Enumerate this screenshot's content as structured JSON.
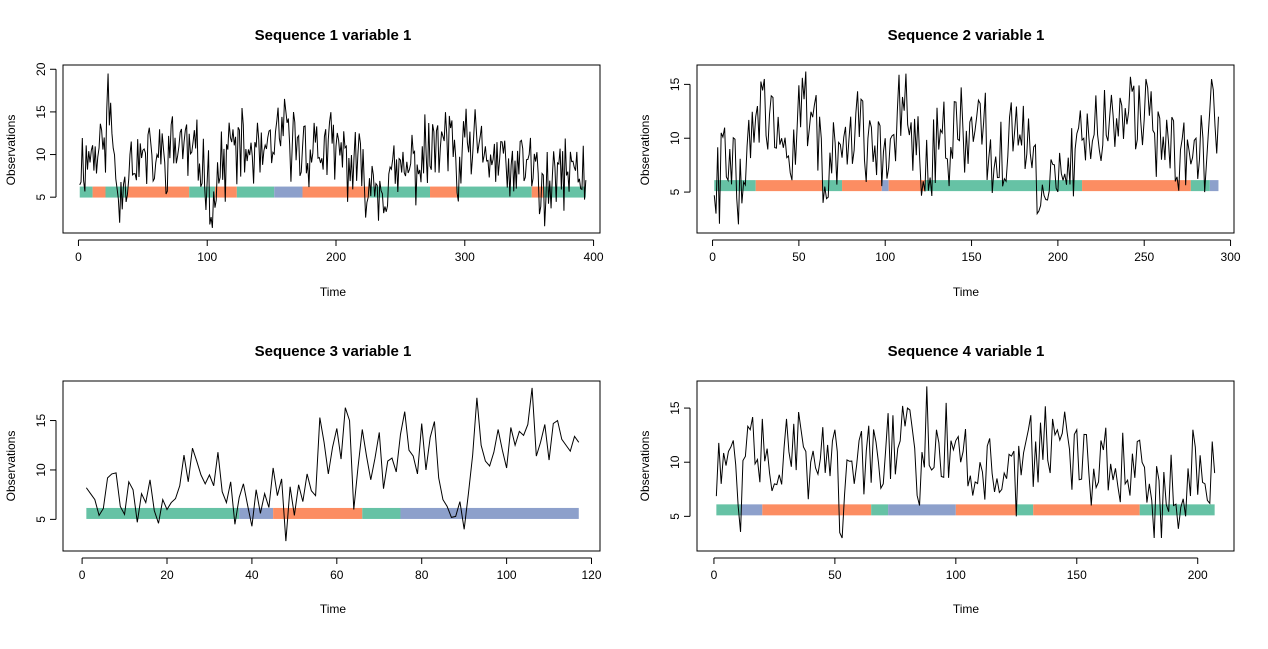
{
  "colors": {
    "teal": "#66c2a5",
    "orange": "#fc8d62",
    "blue": "#8da0cb",
    "line": "#000000"
  },
  "chart_data": [
    {
      "type": "line",
      "title": "Sequence  1  variable  1",
      "xlabel": "Time",
      "ylabel": "Observations",
      "xlim": [
        -12,
        405
      ],
      "ylim": [
        0.8,
        20.5
      ],
      "xticks": [
        0,
        100,
        200,
        300,
        400
      ],
      "yticks": [
        5,
        10,
        15,
        20
      ],
      "n": 394,
      "seed": 11,
      "key_points": [
        [
          0,
          8.5
        ],
        [
          10,
          10.5
        ],
        [
          20,
          12
        ],
        [
          23,
          19.5
        ],
        [
          30,
          6
        ],
        [
          32,
          2
        ],
        [
          40,
          10
        ],
        [
          60,
          9
        ],
        [
          80,
          13
        ],
        [
          100,
          7
        ],
        [
          102,
          1.8
        ],
        [
          118,
          12
        ],
        [
          150,
          9
        ],
        [
          155,
          15.5
        ],
        [
          170,
          12
        ],
        [
          200,
          11
        ],
        [
          225,
          5
        ],
        [
          240,
          4
        ],
        [
          270,
          10
        ],
        [
          290,
          14
        ],
        [
          295,
          4.5
        ],
        [
          300,
          12
        ],
        [
          320,
          10
        ],
        [
          340,
          6
        ],
        [
          350,
          10
        ],
        [
          362,
          1.6
        ],
        [
          380,
          8
        ],
        [
          390,
          6
        ],
        [
          394,
          7
        ]
      ],
      "state_band": {
        "y": 5.6,
        "segments": [
          {
            "start": 1,
            "end": 11,
            "state": "teal"
          },
          {
            "start": 11,
            "end": 21,
            "state": "orange"
          },
          {
            "start": 21,
            "end": 38,
            "state": "teal"
          },
          {
            "start": 38,
            "end": 86,
            "state": "orange"
          },
          {
            "start": 86,
            "end": 106,
            "state": "teal"
          },
          {
            "start": 106,
            "end": 123,
            "state": "orange"
          },
          {
            "start": 123,
            "end": 152,
            "state": "teal"
          },
          {
            "start": 152,
            "end": 174,
            "state": "blue"
          },
          {
            "start": 174,
            "end": 226,
            "state": "orange"
          },
          {
            "start": 226,
            "end": 273,
            "state": "teal"
          },
          {
            "start": 273,
            "end": 294,
            "state": "orange"
          },
          {
            "start": 294,
            "end": 352,
            "state": "teal"
          },
          {
            "start": 352,
            "end": 361,
            "state": "orange"
          },
          {
            "start": 361,
            "end": 394,
            "state": "teal"
          }
        ]
      }
    },
    {
      "type": "line",
      "title": "Sequence  2  variable  1",
      "xlabel": "Time",
      "ylabel": "Observations",
      "xlim": [
        -9,
        302
      ],
      "ylim": [
        1.2,
        16.8
      ],
      "xticks": [
        0,
        50,
        100,
        150,
        200,
        250,
        300
      ],
      "yticks": [
        5,
        10,
        15
      ],
      "n": 293,
      "seed": 22,
      "key_points": [
        [
          0,
          8
        ],
        [
          2,
          3
        ],
        [
          10,
          9
        ],
        [
          15,
          2
        ],
        [
          25,
          12
        ],
        [
          30,
          15.5
        ],
        [
          40,
          10
        ],
        [
          60,
          14
        ],
        [
          64,
          4
        ],
        [
          80,
          12
        ],
        [
          100,
          10
        ],
        [
          112,
          16
        ],
        [
          120,
          8
        ],
        [
          150,
          12
        ],
        [
          170,
          6
        ],
        [
          180,
          13
        ],
        [
          188,
          3
        ],
        [
          210,
          9
        ],
        [
          215,
          10
        ],
        [
          230,
          12
        ],
        [
          251,
          15.5
        ],
        [
          260,
          8
        ],
        [
          280,
          10
        ],
        [
          285,
          5
        ],
        [
          290,
          14.5
        ],
        [
          293,
          12
        ]
      ],
      "state_band": {
        "y": 5.6,
        "segments": [
          {
            "start": 1,
            "end": 25,
            "state": "teal"
          },
          {
            "start": 25,
            "end": 64,
            "state": "orange"
          },
          {
            "start": 64,
            "end": 75,
            "state": "teal"
          },
          {
            "start": 75,
            "end": 98,
            "state": "orange"
          },
          {
            "start": 98,
            "end": 102,
            "state": "blue"
          },
          {
            "start": 102,
            "end": 123,
            "state": "orange"
          },
          {
            "start": 123,
            "end": 214,
            "state": "teal"
          },
          {
            "start": 214,
            "end": 277,
            "state": "orange"
          },
          {
            "start": 277,
            "end": 288,
            "state": "teal"
          },
          {
            "start": 288,
            "end": 293,
            "state": "blue"
          }
        ]
      }
    },
    {
      "type": "line",
      "title": "Sequence  3  variable  1",
      "xlabel": "Time",
      "ylabel": "Observations",
      "xlim": [
        -4.5,
        122
      ],
      "ylim": [
        1.8,
        19.0
      ],
      "xticks": [
        0,
        20,
        40,
        60,
        80,
        100,
        120
      ],
      "yticks": [
        5,
        10,
        15
      ],
      "n": 117,
      "seed": 33,
      "values": [
        8.2,
        7.6,
        7.0,
        5.4,
        6.1,
        9.2,
        9.6,
        9.7,
        6.3,
        5.5,
        8.8,
        8.0,
        4.7,
        7.6,
        6.7,
        9.0,
        5.9,
        4.6,
        7.0,
        6.0,
        6.7,
        7.1,
        8.4,
        11.5,
        8.8,
        12.2,
        10.9,
        9.5,
        8.6,
        9.5,
        8.4,
        11.8,
        7.8,
        6.7,
        8.8,
        4.5,
        7.2,
        8.6,
        6.4,
        4.3,
        8.0,
        5.6,
        7.6,
        6.2,
        10.2,
        7.4,
        9.1,
        2.8,
        8.3,
        5.4,
        8.5,
        6.8,
        9.6,
        7.9,
        7.4,
        15.3,
        12.8,
        9.6,
        12.3,
        14.2,
        11.1,
        16.3,
        15.0,
        6.0,
        10.3,
        14.1,
        11.4,
        9.0,
        11.2,
        13.8,
        8.1,
        10.9,
        11.2,
        9.8,
        13.6,
        15.9,
        12.0,
        11.4,
        9.6,
        14.7,
        10.0,
        13.3,
        14.9,
        9.2,
        7.0,
        6.3,
        5.2,
        5.3,
        6.8,
        4.0,
        7.6,
        11.5,
        17.3,
        12.5,
        10.9,
        10.4,
        11.8,
        14.1,
        12.0,
        10.2,
        14.3,
        12.5,
        13.9,
        13.5,
        14.6,
        18.3,
        11.4,
        12.8,
        14.6,
        11.0,
        14.7,
        15.0,
        13.1,
        12.5,
        11.9,
        13.4,
        12.8
      ],
      "state_band": {
        "y": 5.6,
        "segments": [
          {
            "start": 1,
            "end": 37,
            "state": "teal"
          },
          {
            "start": 37,
            "end": 45,
            "state": "blue"
          },
          {
            "start": 45,
            "end": 66,
            "state": "orange"
          },
          {
            "start": 66,
            "end": 75,
            "state": "teal"
          },
          {
            "start": 75,
            "end": 117,
            "state": "blue"
          }
        ]
      }
    },
    {
      "type": "line",
      "title": "Sequence  4  variable  1",
      "xlabel": "Time",
      "ylabel": "Observations",
      "xlim": [
        -7,
        215
      ],
      "ylim": [
        1.8,
        17.5
      ],
      "xticks": [
        0,
        50,
        100,
        150,
        200
      ],
      "yticks": [
        5,
        10,
        15
      ],
      "n": 207,
      "seed": 44,
      "key_points": [
        [
          0,
          10
        ],
        [
          3,
          8
        ],
        [
          6,
          11
        ],
        [
          10,
          6
        ],
        [
          15,
          13
        ],
        [
          20,
          14
        ],
        [
          25,
          8
        ],
        [
          30,
          14
        ],
        [
          40,
          10
        ],
        [
          50,
          13
        ],
        [
          52,
          3.5
        ],
        [
          60,
          12
        ],
        [
          70,
          8
        ],
        [
          80,
          15
        ],
        [
          85,
          6
        ],
        [
          88,
          17
        ],
        [
          92,
          13
        ],
        [
          100,
          12
        ],
        [
          110,
          10
        ],
        [
          120,
          9
        ],
        [
          125,
          5
        ],
        [
          130,
          13
        ],
        [
          140,
          14
        ],
        [
          150,
          13
        ],
        [
          155,
          9
        ],
        [
          160,
          12
        ],
        [
          170,
          8
        ],
        [
          177,
          10
        ],
        [
          180,
          8
        ],
        [
          185,
          3
        ],
        [
          190,
          6
        ],
        [
          195,
          5
        ],
        [
          198,
          13
        ],
        [
          200,
          7
        ],
        [
          203,
          8
        ],
        [
          207,
          9
        ]
      ],
      "state_band": {
        "y": 5.6,
        "segments": [
          {
            "start": 1,
            "end": 11,
            "state": "teal"
          },
          {
            "start": 11,
            "end": 20,
            "state": "blue"
          },
          {
            "start": 20,
            "end": 52,
            "state": "orange"
          },
          {
            "start": 52,
            "end": 65,
            "state": "orange"
          },
          {
            "start": 65,
            "end": 72,
            "state": "teal"
          },
          {
            "start": 72,
            "end": 100,
            "state": "blue"
          },
          {
            "start": 100,
            "end": 125,
            "state": "orange"
          },
          {
            "start": 125,
            "end": 132,
            "state": "teal"
          },
          {
            "start": 132,
            "end": 176,
            "state": "orange"
          },
          {
            "start": 176,
            "end": 207,
            "state": "teal"
          }
        ]
      }
    }
  ]
}
